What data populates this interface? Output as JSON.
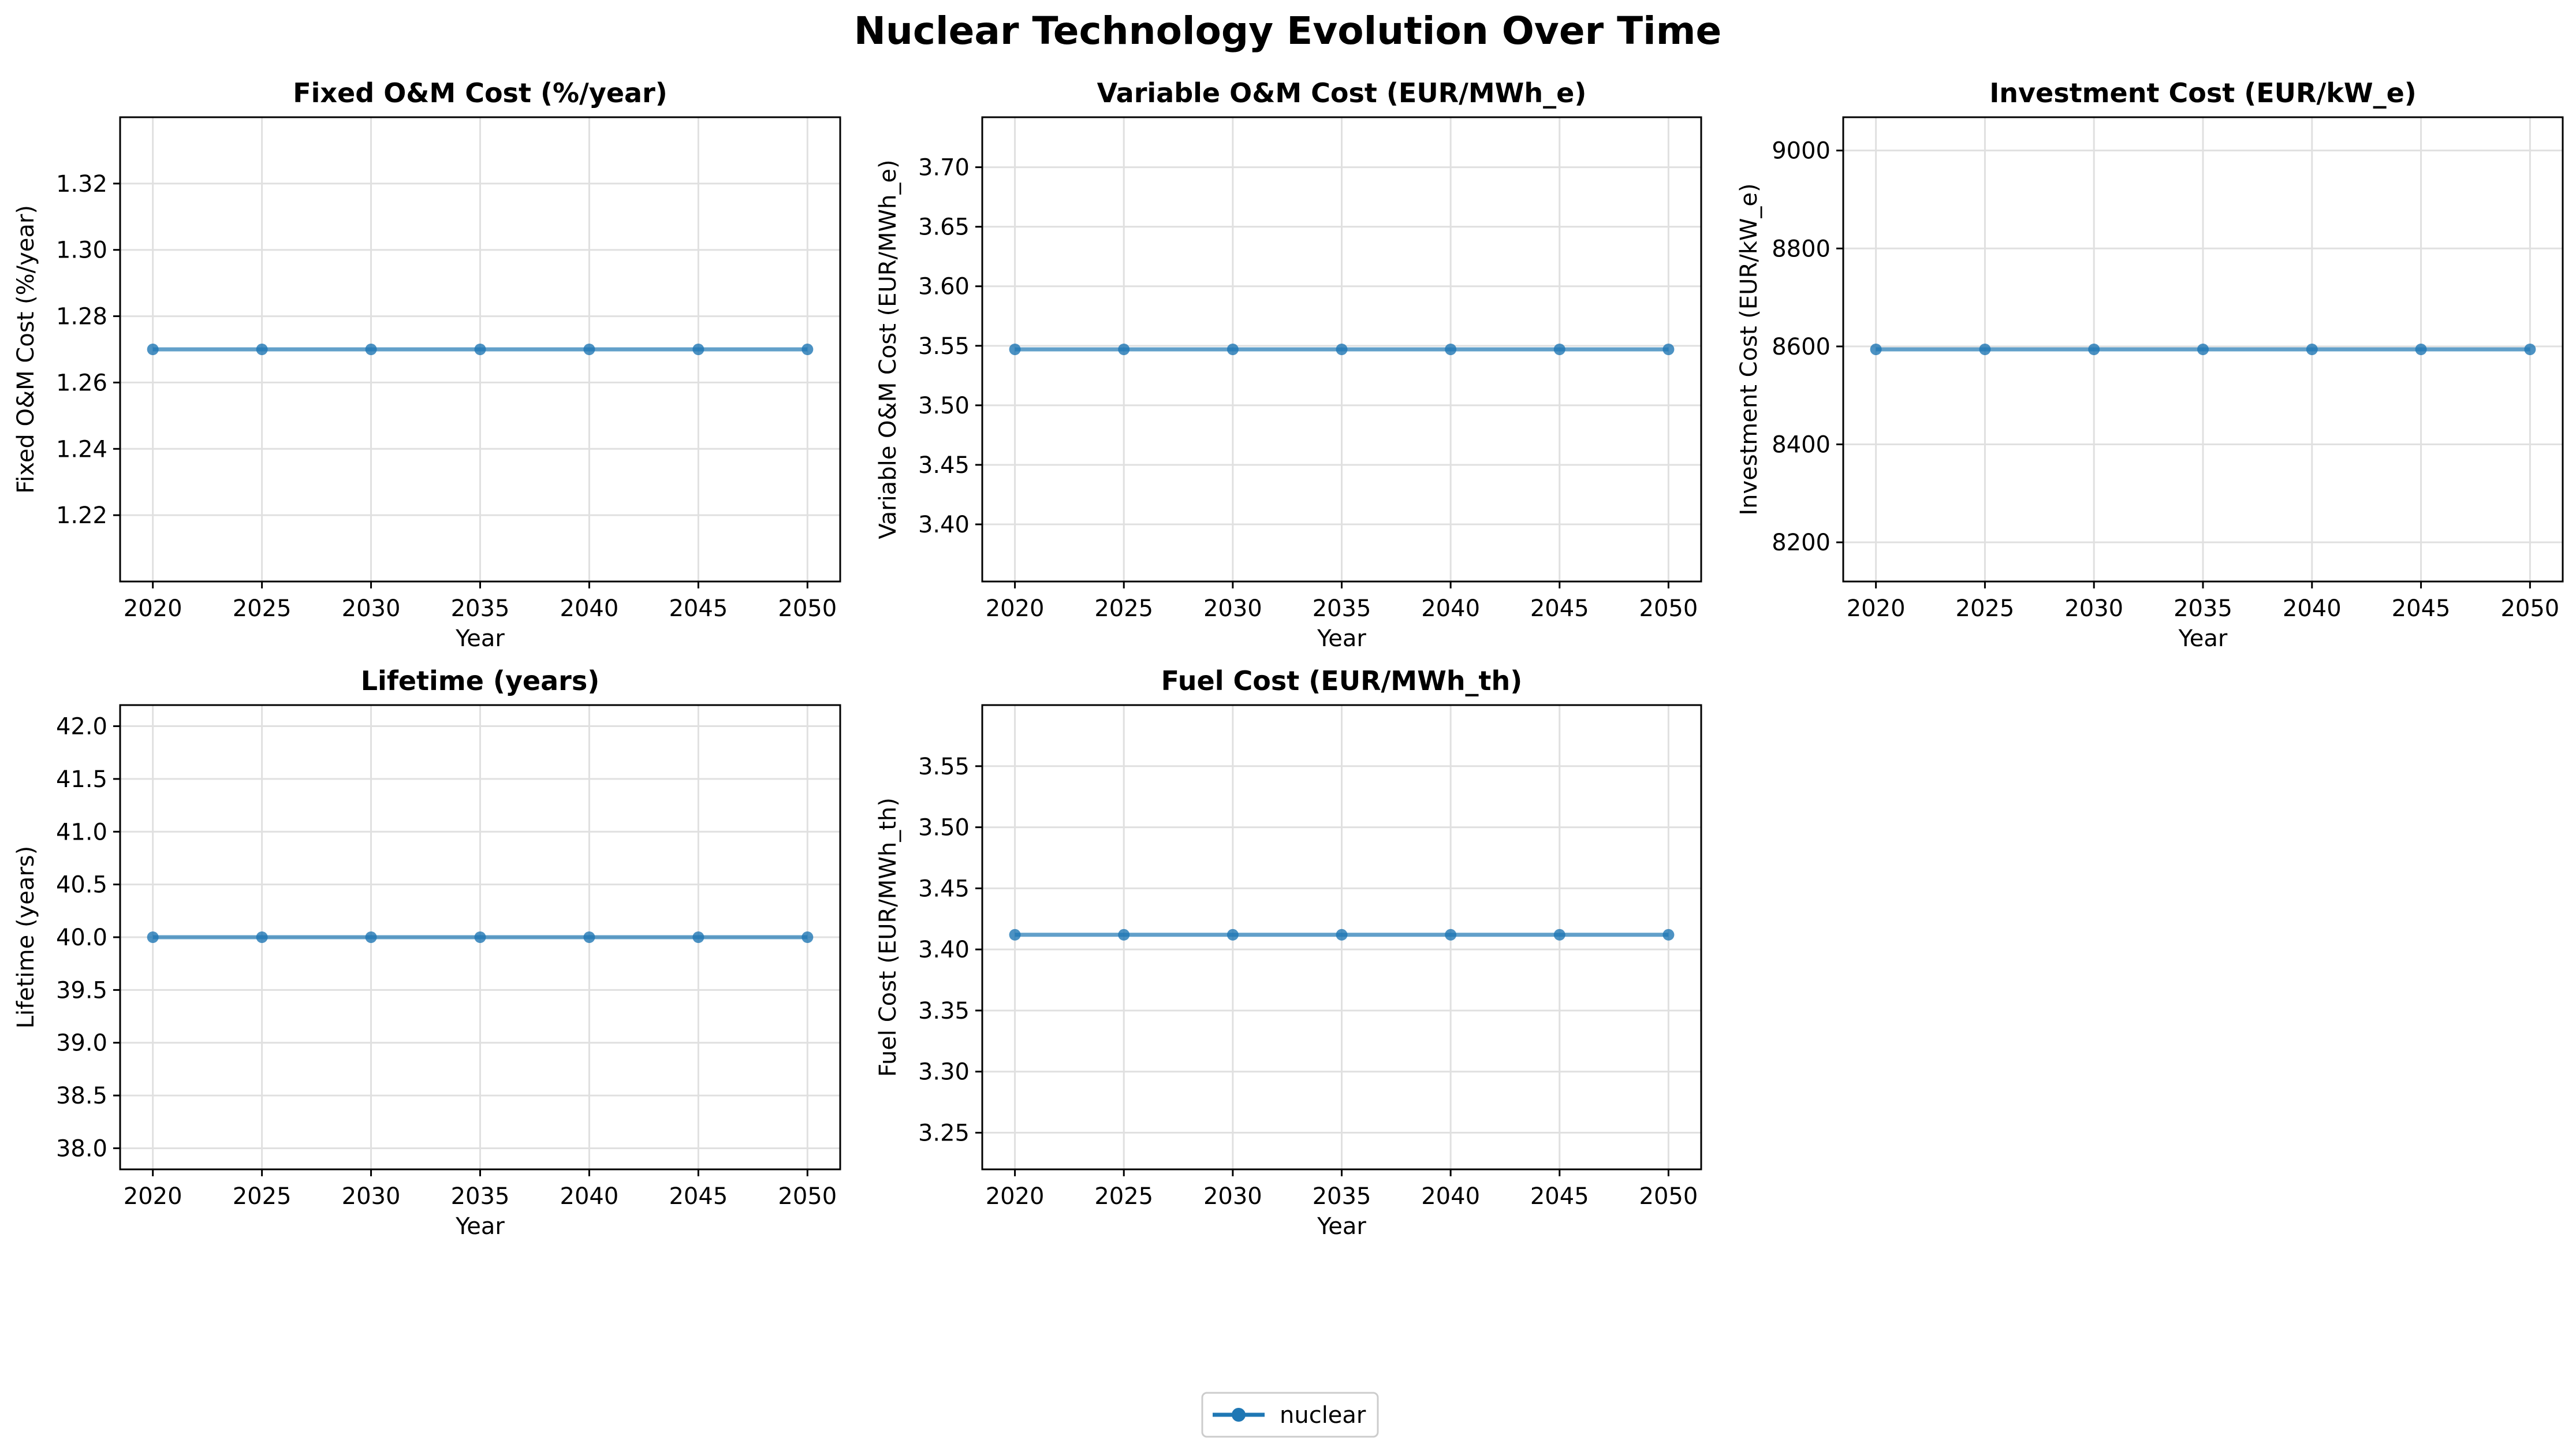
{
  "figure": {
    "title": "Nuclear Technology Evolution Over Time"
  },
  "legend": {
    "entries": [
      {
        "label": "nuclear",
        "color": "#1f77b4",
        "marker": "circle"
      }
    ],
    "placement": "bottom-center"
  },
  "colors": {
    "series": "#1f77b4",
    "grid": "#e0e0e0",
    "axis": "#000000"
  },
  "chart_data": [
    {
      "type": "line",
      "title": "Fixed O&M Cost (%/year)",
      "xlabel": "Year",
      "ylabel": "Fixed O&M Cost (%/year)",
      "xlim": [
        2018.5,
        2051.5
      ],
      "ylim": [
        1.2,
        1.34
      ],
      "xticks": [
        2020,
        2025,
        2030,
        2035,
        2040,
        2045,
        2050
      ],
      "yticks": [
        1.22,
        1.24,
        1.26,
        1.28,
        1.3,
        1.32
      ],
      "yticklabels": [
        "1.22",
        "1.24",
        "1.26",
        "1.28",
        "1.30",
        "1.32"
      ],
      "grid": true,
      "series": [
        {
          "name": "nuclear",
          "x": [
            2020,
            2025,
            2030,
            2035,
            2040,
            2045,
            2050
          ],
          "values": [
            1.27,
            1.27,
            1.27,
            1.27,
            1.27,
            1.27,
            1.27
          ]
        }
      ]
    },
    {
      "type": "line",
      "title": "Variable O&M Cost (EUR/MWh_e)",
      "xlabel": "Year",
      "ylabel": "Variable O&M Cost (EUR/MWh_e)",
      "xlim": [
        2018.5,
        2051.5
      ],
      "ylim": [
        3.352,
        3.742
      ],
      "xticks": [
        2020,
        2025,
        2030,
        2035,
        2040,
        2045,
        2050
      ],
      "yticks": [
        3.4,
        3.45,
        3.5,
        3.55,
        3.6,
        3.65,
        3.7
      ],
      "yticklabels": [
        "3.40",
        "3.45",
        "3.50",
        "3.55",
        "3.60",
        "3.65",
        "3.70"
      ],
      "grid": true,
      "series": [
        {
          "name": "nuclear",
          "x": [
            2020,
            2025,
            2030,
            2035,
            2040,
            2045,
            2050
          ],
          "values": [
            3.547,
            3.547,
            3.547,
            3.547,
            3.547,
            3.547,
            3.547
          ]
        }
      ]
    },
    {
      "type": "line",
      "title": "Investment Cost (EUR/kW_e)",
      "xlabel": "Year",
      "ylabel": "Investment Cost (EUR/kW_e)",
      "xlim": [
        2018.5,
        2051.5
      ],
      "ylim": [
        8120,
        9068
      ],
      "xticks": [
        2020,
        2025,
        2030,
        2035,
        2040,
        2045,
        2050
      ],
      "yticks": [
        8200,
        8400,
        8600,
        8800,
        9000
      ],
      "yticklabels": [
        "8200",
        "8400",
        "8600",
        "8800",
        "9000"
      ],
      "grid": true,
      "series": [
        {
          "name": "nuclear",
          "x": [
            2020,
            2025,
            2030,
            2035,
            2040,
            2045,
            2050
          ],
          "values": [
            8594,
            8594,
            8594,
            8594,
            8594,
            8594,
            8594
          ]
        }
      ]
    },
    {
      "type": "line",
      "title": "Lifetime (years)",
      "xlabel": "Year",
      "ylabel": "Lifetime (years)",
      "xlim": [
        2018.5,
        2051.5
      ],
      "ylim": [
        37.8,
        42.2
      ],
      "xticks": [
        2020,
        2025,
        2030,
        2035,
        2040,
        2045,
        2050
      ],
      "yticks": [
        38.0,
        38.5,
        39.0,
        39.5,
        40.0,
        40.5,
        41.0,
        41.5,
        42.0
      ],
      "yticklabels": [
        "38.0",
        "38.5",
        "39.0",
        "39.5",
        "40.0",
        "40.5",
        "41.0",
        "41.5",
        "42.0"
      ],
      "grid": true,
      "series": [
        {
          "name": "nuclear",
          "x": [
            2020,
            2025,
            2030,
            2035,
            2040,
            2045,
            2050
          ],
          "values": [
            40,
            40,
            40,
            40,
            40,
            40,
            40
          ]
        }
      ]
    },
    {
      "type": "line",
      "title": "Fuel Cost (EUR/MWh_th)",
      "xlabel": "Year",
      "ylabel": "Fuel Cost (EUR/MWh_th)",
      "xlim": [
        2018.5,
        2051.5
      ],
      "ylim": [
        3.22,
        3.6
      ],
      "xticks": [
        2020,
        2025,
        2030,
        2035,
        2040,
        2045,
        2050
      ],
      "yticks": [
        3.25,
        3.3,
        3.35,
        3.4,
        3.45,
        3.5,
        3.55
      ],
      "yticklabels": [
        "3.25",
        "3.30",
        "3.35",
        "3.40",
        "3.45",
        "3.50",
        "3.55"
      ],
      "grid": true,
      "series": [
        {
          "name": "nuclear",
          "x": [
            2020,
            2025,
            2030,
            2035,
            2040,
            2045,
            2050
          ],
          "values": [
            3.412,
            3.412,
            3.412,
            3.412,
            3.412,
            3.412,
            3.412
          ]
        }
      ]
    }
  ]
}
